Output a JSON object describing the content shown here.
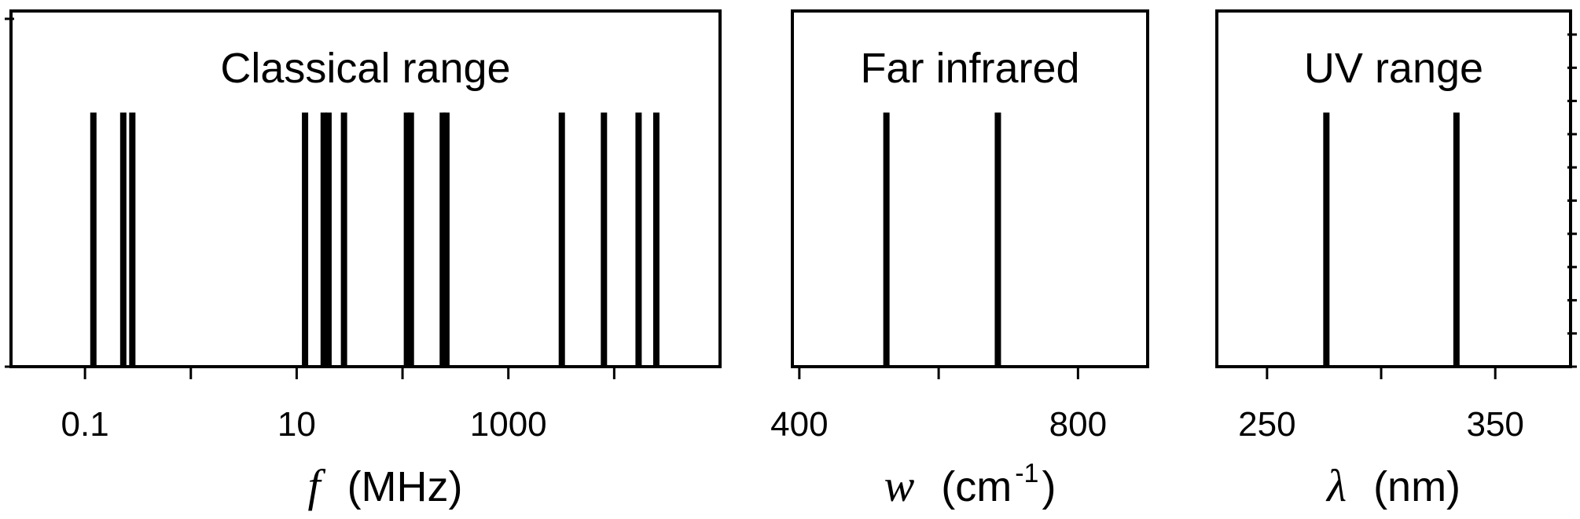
{
  "chart_data": [
    {
      "type": "line",
      "title": "Classical range",
      "xscale": "log",
      "xlim": [
        0.02,
        100000
      ],
      "xticks_major": [
        0.1,
        10,
        1000
      ],
      "xticks_minor": [
        1,
        100,
        10000
      ],
      "xlabel_symbol": "f",
      "xlabel_unit": "(MHz)",
      "line_positions": [
        0.12,
        0.23,
        0.28,
        12,
        18,
        20,
        28,
        110,
        120,
        240,
        260,
        3200,
        8000,
        17000,
        25000
      ],
      "line_height": 1,
      "ylim": [
        0,
        1.4
      ]
    },
    {
      "type": "line",
      "title": "Far infrared",
      "xscale": "linear",
      "xlim": [
        390,
        900
      ],
      "xticks_major": [
        400,
        800
      ],
      "xticks_minor": [
        600
      ],
      "xlabel_symbol": "w",
      "xlabel_unit": "(cm",
      "xlabel_sup": "-1",
      "xlabel_close": ")",
      "line_positions": [
        525,
        685
      ],
      "line_height": 1,
      "ylim": [
        0,
        1.4
      ]
    },
    {
      "type": "line",
      "title": "UV range",
      "xscale": "linear",
      "xlim": [
        228,
        383
      ],
      "xticks_major": [
        250,
        350
      ],
      "xticks_minor": [
        300
      ],
      "xlabel_symbol": "λ",
      "xlabel_unit": "(nm)",
      "line_positions": [
        276,
        333
      ],
      "line_height": 1,
      "ylim": [
        0,
        1.4
      ]
    }
  ]
}
